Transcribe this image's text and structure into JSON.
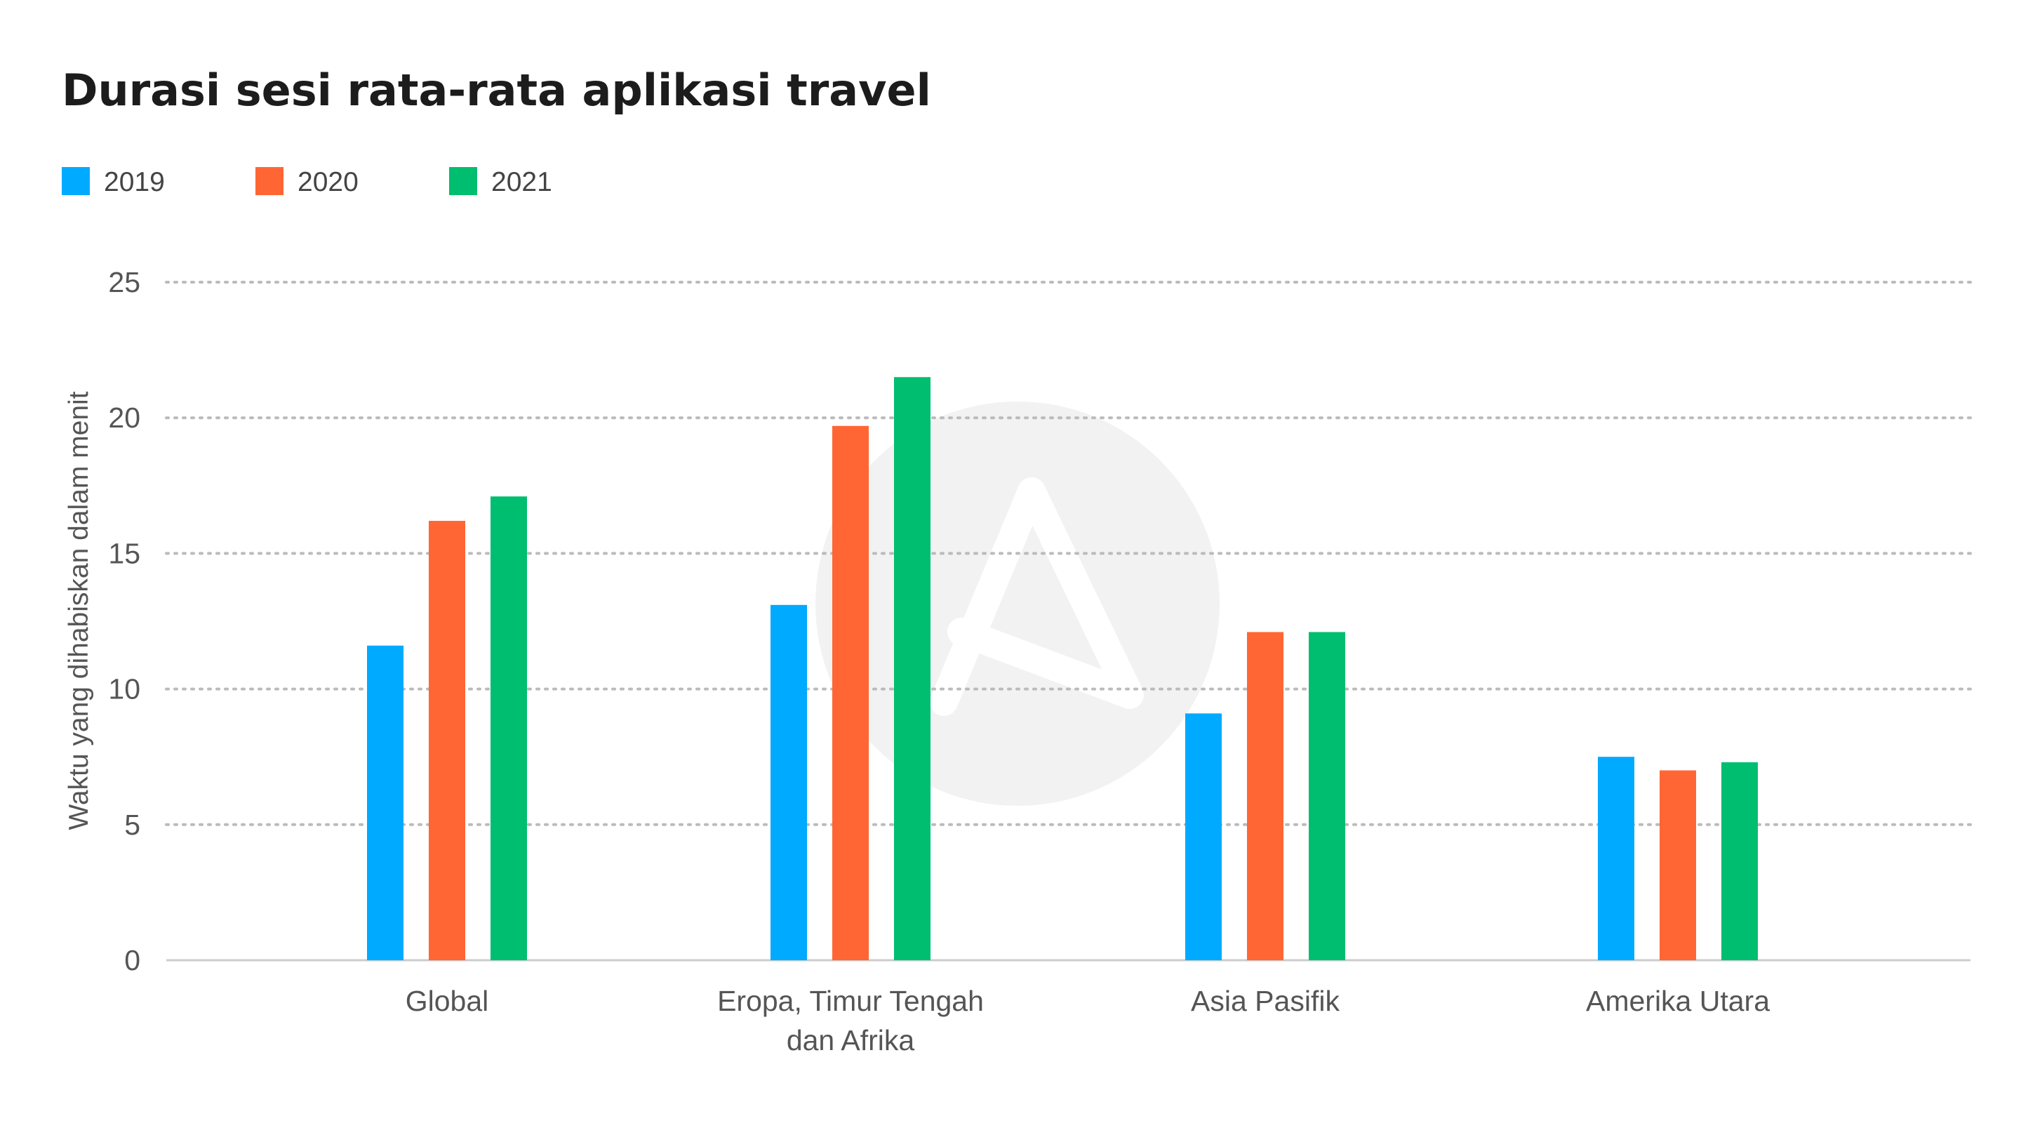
{
  "chart_data": {
    "type": "bar",
    "title": "Durasi sesi rata-rata aplikasi travel",
    "xlabel": "",
    "ylabel": "Waktu yang dihabiskan dalam menit",
    "ylim": [
      0,
      25
    ],
    "yticks": [
      0,
      5,
      10,
      15,
      20,
      25
    ],
    "grid": true,
    "legend_position": "top-left",
    "categories": [
      [
        "Global"
      ],
      [
        "Eropa, Timur Tengah",
        "dan Afrika"
      ],
      [
        "Asia Pasifik"
      ],
      [
        "Amerika Utara"
      ]
    ],
    "series": [
      {
        "name": "2019",
        "color": "#00AAFF",
        "values": [
          11.6,
          13.1,
          9.1,
          7.5
        ]
      },
      {
        "name": "2020",
        "color": "#FF6633",
        "values": [
          16.2,
          19.7,
          12.1,
          7.0
        ]
      },
      {
        "name": "2021",
        "color": "#00BE70",
        "values": [
          17.1,
          21.5,
          12.1,
          7.3
        ]
      }
    ]
  },
  "colors": {
    "grid": "#bbbbbb",
    "axis": "#cccccc",
    "watermark": "#f2f2f2"
  },
  "watermark_icon": "logo-a-icon"
}
